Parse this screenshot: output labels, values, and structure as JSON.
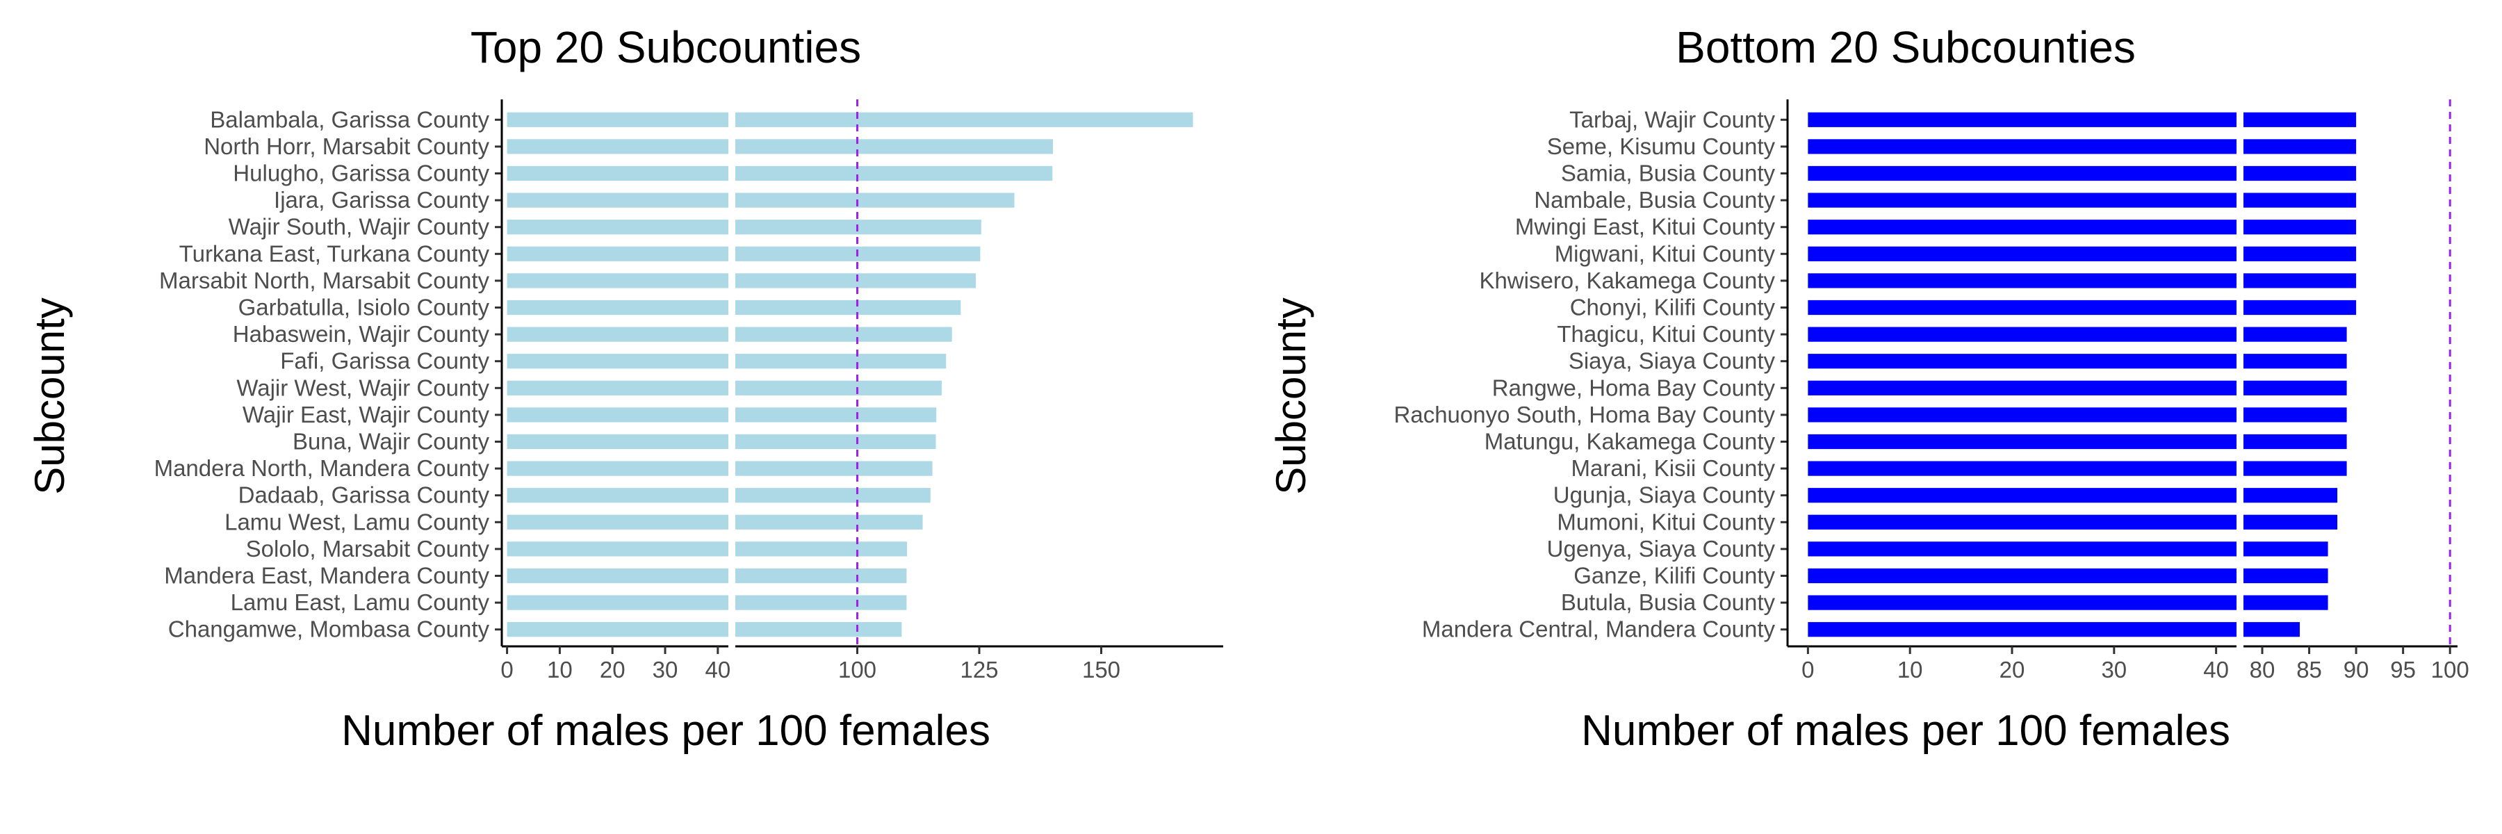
{
  "chart_data": [
    {
      "type": "bar",
      "orientation": "horizontal",
      "title": "Top 20 Subcounties",
      "xlabel": "Number of males per 100 females",
      "ylabel": "Subcounty",
      "color": "#ADD8E6",
      "reference_line": {
        "value": 100,
        "color": "#A020F0",
        "style": "dashed"
      },
      "broken_axis": true,
      "segments": [
        {
          "xlim": [
            -1,
            42
          ],
          "ticks": [
            0,
            10,
            20,
            30,
            40
          ]
        },
        {
          "xlim": [
            75,
            175
          ],
          "ticks": [
            100,
            125,
            150
          ]
        }
      ],
      "categories": [
        "Balambala, Garissa County",
        "North Horr, Marsabit County",
        "Hulugho, Garissa County",
        "Ijara, Garissa County",
        "Wajir South, Wajir County",
        "Turkana East, Turkana County",
        "Marsabit North, Marsabit County",
        "Garbatulla, Isiolo County",
        "Habaswein, Wajir County",
        "Fafi, Garissa County",
        "Wajir West, Wajir County",
        "Wajir East, Wajir County",
        "Buna, Wajir County",
        "Mandera North, Mandera County",
        "Dadaab, Garissa County",
        "Lamu West, Lamu County",
        "Sololo, Marsabit County",
        "Mandera East, Mandera County",
        "Lamu East, Lamu County",
        "Changamwe, Mombasa County"
      ],
      "values": [
        168.8,
        140.1,
        140.0,
        132.2,
        125.4,
        125.2,
        124.3,
        121.2,
        119.4,
        118.2,
        117.3,
        116.2,
        116.1,
        115.4,
        115.0,
        113.4,
        110.2,
        110.1,
        110.1,
        109.1
      ]
    },
    {
      "type": "bar",
      "orientation": "horizontal",
      "title": "Bottom 20 Subcounties",
      "xlabel": "Number of males per 100 females",
      "ylabel": "Subcounty",
      "color": "#0000FF",
      "reference_line": {
        "value": 100,
        "color": "#A020F0",
        "style": "dashed"
      },
      "broken_axis": true,
      "segments": [
        {
          "xlim": [
            -2,
            42
          ],
          "ticks": [
            0,
            10,
            20,
            30,
            40
          ]
        },
        {
          "xlim": [
            78,
            100.8
          ],
          "ticks": [
            80,
            85,
            90,
            95,
            100
          ]
        }
      ],
      "categories": [
        "Tarbaj, Wajir County",
        "Seme, Kisumu County",
        "Samia, Busia County",
        "Nambale, Busia County",
        "Mwingi East, Kitui County",
        "Migwani, Kitui County",
        "Khwisero, Kakamega County",
        "Chonyi, Kilifi County",
        "Thagicu, Kitui County",
        "Siaya, Siaya County",
        "Rangwe, Homa Bay County",
        "Rachuonyo South, Homa Bay County",
        "Matungu, Kakamega County",
        "Marani, Kisii County",
        "Ugunja, Siaya County",
        "Mumoni, Kitui County",
        "Ugenya, Siaya County",
        "Ganze, Kilifi County",
        "Butula, Busia County",
        "Mandera Central, Mandera County"
      ],
      "values": [
        90.0,
        90.0,
        90.0,
        90.0,
        90.0,
        90.0,
        90.0,
        90.0,
        89.0,
        89.0,
        89.0,
        89.0,
        89.0,
        89.0,
        88.0,
        88.0,
        87.0,
        87.0,
        87.0,
        84.0
      ]
    }
  ]
}
